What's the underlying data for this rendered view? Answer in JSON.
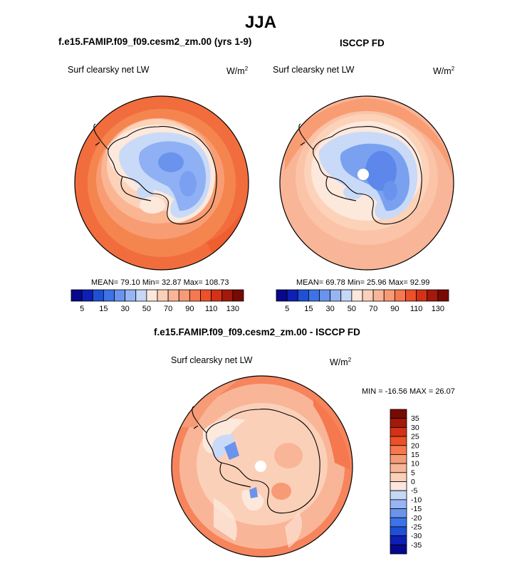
{
  "page": {
    "title": "JJA",
    "units": "W/m",
    "units_exp": "2"
  },
  "colors": {
    "seq_palette": [
      "#08088c",
      "#0d1fb4",
      "#1f4fd6",
      "#3d73e6",
      "#6a93ee",
      "#97b5f2",
      "#c6d8f6",
      "#fde7dc",
      "#fbd0b8",
      "#f9b597",
      "#f79a76",
      "#f5784e",
      "#ee5028",
      "#d33217",
      "#a3190c",
      "#780a04"
    ],
    "diff_palette": [
      "#08088c",
      "#0d1fb4",
      "#1f4fd6",
      "#3d73e6",
      "#6a93ee",
      "#97b5f2",
      "#c6d8f6",
      "#fde7dc",
      "#fbd0b8",
      "#f9b597",
      "#f79a76",
      "#f5784e",
      "#ee5028",
      "#d33217",
      "#a3190c",
      "#780a04"
    ],
    "land_fill_model": "#8fb0f4",
    "land_fill_obs": "#7aa1f0",
    "land_fill_diff": "#f7b595"
  },
  "panels": [
    {
      "title": "f.e15.FAMIP.f09_f09.cesm2_zm.00 (yrs 1-9)",
      "variable": "Surf clearsky net LW",
      "stats": "MEAN=  79.10  Min=  32.87  Max= 108.73"
    },
    {
      "title": "ISCCP FD",
      "variable": "Surf clearsky net LW",
      "stats": "MEAN=  69.78  Min=  25.96  Max=  92.99"
    },
    {
      "title": "f.e15.FAMIP.f09_f09.cesm2_zm.00 - ISCCP FD",
      "variable": "Surf clearsky net LW",
      "stats": "MIN = -16.56 MAX =  26.07"
    }
  ],
  "chart_data": [
    {
      "type": "heatmap",
      "projection": "south polar stereographic",
      "title": "f.e15.FAMIP.f09_f09.cesm2_zm.00 (yrs 1-9)",
      "subtitle": "Surf clearsky net LW",
      "units": "W/m2",
      "mean": 79.1,
      "min": 32.87,
      "max": 108.73,
      "colorbar_levels": [
        5,
        10,
        15,
        20,
        30,
        40,
        50,
        60,
        70,
        80,
        90,
        100,
        110,
        120,
        130
      ],
      "colorbar_tick_labels": [
        "5",
        "15",
        "30",
        "50",
        "70",
        "90",
        "110",
        "130"
      ]
    },
    {
      "type": "heatmap",
      "projection": "south polar stereographic",
      "title": "ISCCP FD",
      "subtitle": "Surf clearsky net LW",
      "units": "W/m2",
      "mean": 69.78,
      "min": 25.96,
      "max": 92.99,
      "colorbar_levels": [
        5,
        10,
        15,
        20,
        30,
        40,
        50,
        60,
        70,
        80,
        90,
        100,
        110,
        120,
        130
      ],
      "colorbar_tick_labels": [
        "5",
        "15",
        "30",
        "50",
        "70",
        "90",
        "110",
        "130"
      ]
    },
    {
      "type": "heatmap",
      "projection": "south polar stereographic",
      "title": "f.e15.FAMIP.f09_f09.cesm2_zm.00 - ISCCP FD",
      "subtitle": "Surf clearsky net LW",
      "units": "W/m2",
      "min": -16.56,
      "max": 26.07,
      "colorbar_levels": [
        -35,
        -30,
        -25,
        -20,
        -15,
        -10,
        -5,
        0,
        5,
        10,
        15,
        20,
        25,
        30,
        35
      ],
      "colorbar_tick_labels": [
        "35",
        "30",
        "25",
        "20",
        "15",
        "10",
        "5",
        "0",
        "-5",
        "-10",
        "-15",
        "-20",
        "-25",
        "-30",
        "-35"
      ]
    }
  ]
}
